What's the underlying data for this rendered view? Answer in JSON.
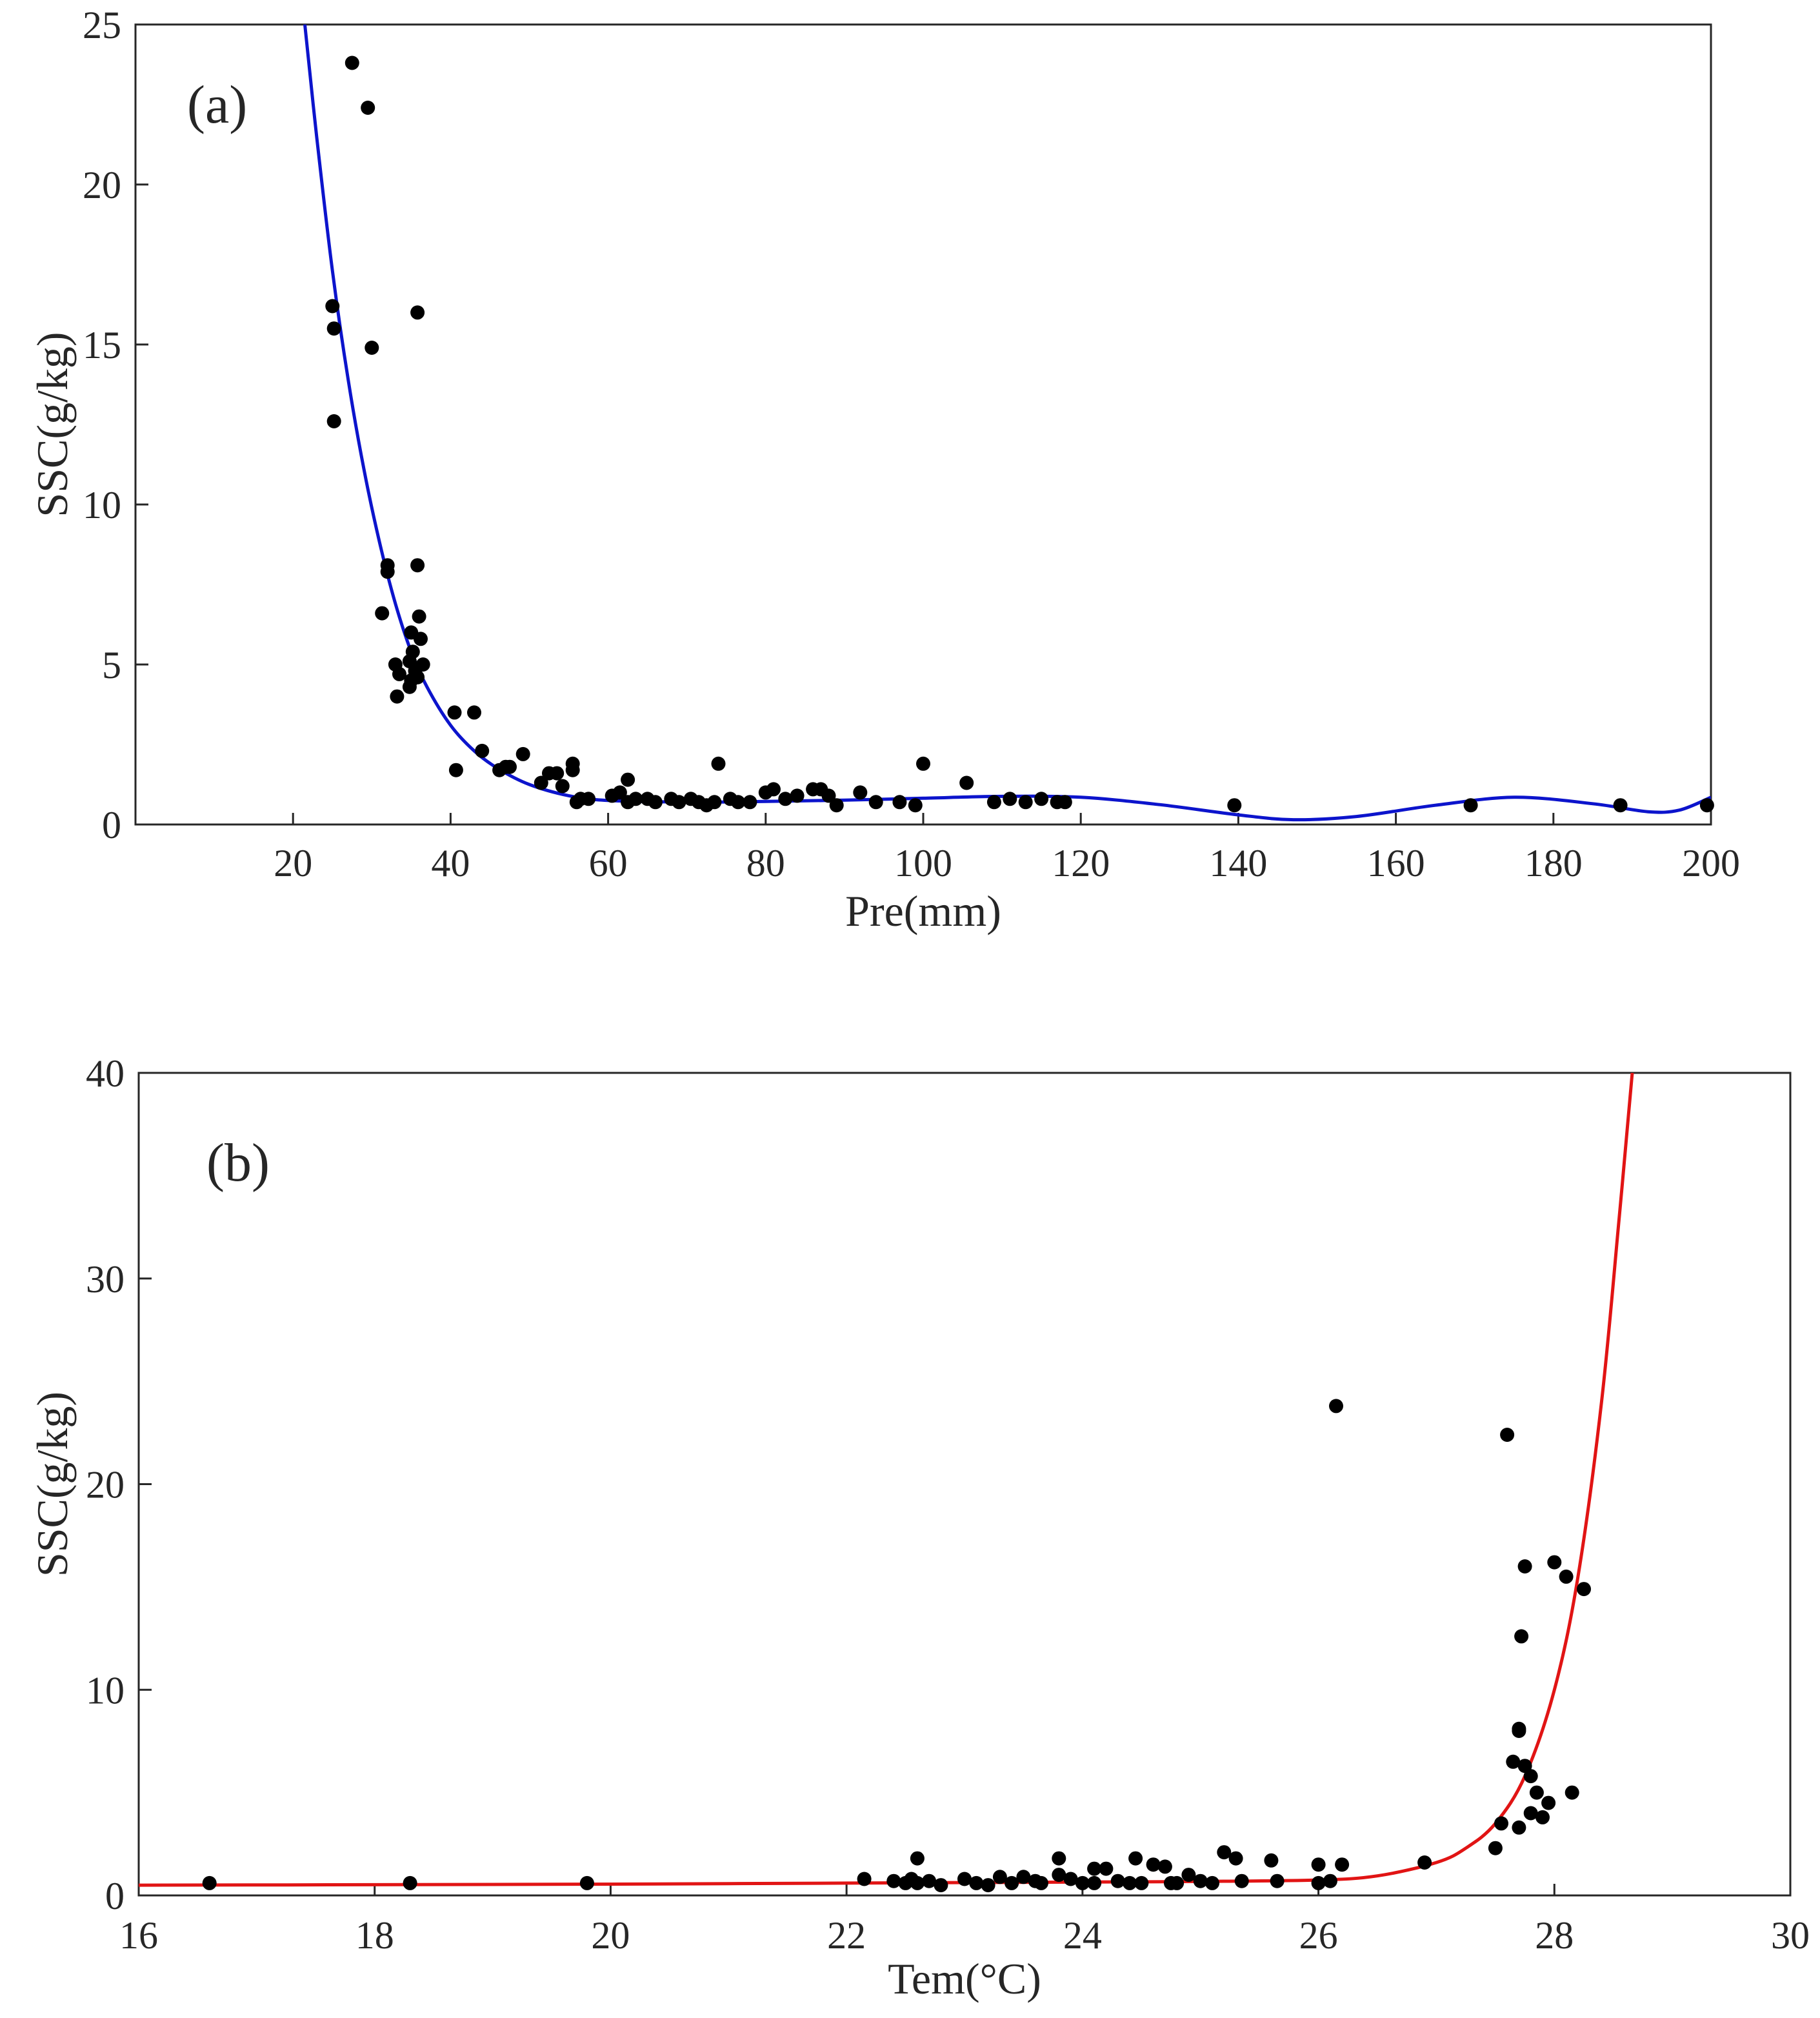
{
  "chart_data": [
    {
      "type": "scatter",
      "panel_label": "(a)",
      "xlabel": "Pre(mm)",
      "ylabel": "SSC(g/kg)",
      "xlim": [
        0,
        200
      ],
      "ylim": [
        0,
        25
      ],
      "xticks": [
        20,
        40,
        60,
        80,
        100,
        120,
        140,
        160,
        180,
        200
      ],
      "yticks": [
        0,
        5,
        10,
        15,
        20,
        25
      ],
      "fit_color": "#0c14cc",
      "fit_curve": {
        "x": [
          21.5,
          23,
          25,
          27,
          29,
          31,
          33,
          35,
          37,
          40,
          43,
          46,
          50,
          55,
          60,
          70,
          80,
          90,
          100,
          110,
          120,
          130,
          140,
          147,
          155,
          165,
          175,
          185,
          192,
          196,
          200
        ],
        "y": [
          25,
          21.5,
          17.3,
          13.9,
          11.1,
          8.8,
          6.9,
          5.4,
          4.3,
          3.1,
          2.3,
          1.75,
          1.25,
          0.9,
          0.75,
          0.7,
          0.72,
          0.76,
          0.82,
          0.88,
          0.85,
          0.62,
          0.3,
          0.15,
          0.25,
          0.6,
          0.85,
          0.65,
          0.4,
          0.45,
          0.85
        ]
      },
      "points": {
        "x": [
          27.5,
          29.5,
          25,
          25.2,
          35.8,
          30,
          25.2,
          32,
          32,
          35.8,
          31.3,
          36,
          35,
          36.2,
          35.2,
          33,
          34.8,
          36.5,
          33.5,
          35,
          33.2,
          34.8,
          35.5,
          35.8,
          40.5,
          43,
          44,
          40.7,
          46.2,
          47,
          49.2,
          47.5,
          52.5,
          53.5,
          54.2,
          55.5,
          56,
          51.5,
          55.5,
          56.5,
          57.5,
          60.5,
          61.5,
          62.5,
          63.5,
          62.5,
          65,
          66,
          68,
          69,
          70.5,
          71.5,
          72.5,
          73.5,
          74,
          75.5,
          76.5,
          78,
          80,
          81,
          82.5,
          84,
          86,
          87,
          88,
          89,
          92,
          94,
          97,
          99,
          100,
          105.5,
          109,
          111,
          113,
          115,
          117,
          118,
          139.5,
          169.5,
          188.5,
          199.5
        ],
        "y": [
          23.8,
          22.4,
          16.2,
          15.5,
          16,
          14.9,
          12.6,
          8.1,
          7.9,
          8.1,
          6.6,
          6.5,
          6,
          5.8,
          5.4,
          5,
          5.1,
          5,
          4.7,
          4.5,
          4,
          4.3,
          4.8,
          4.6,
          3.5,
          3.5,
          2.3,
          1.7,
          1.7,
          1.8,
          2.2,
          1.8,
          1.6,
          1.6,
          1.2,
          1.9,
          0.7,
          1.3,
          1.7,
          0.8,
          0.8,
          0.9,
          1.0,
          1.4,
          0.8,
          0.7,
          0.8,
          0.7,
          0.8,
          0.7,
          0.8,
          0.7,
          0.6,
          0.7,
          1.9,
          0.8,
          0.7,
          0.7,
          1.0,
          1.1,
          0.8,
          0.9,
          1.1,
          1.1,
          0.9,
          0.6,
          1.0,
          0.7,
          0.7,
          0.6,
          1.9,
          1.3,
          0.7,
          0.8,
          0.7,
          0.8,
          0.7,
          0.7,
          0.6,
          0.6,
          0.6,
          0.6
        ]
      }
    },
    {
      "type": "scatter",
      "panel_label": "(b)",
      "xlabel": "Tem(°C)",
      "ylabel": "SSC(g/kg)",
      "xlim": [
        16,
        30
      ],
      "ylim": [
        0,
        40
      ],
      "xticks": [
        16,
        18,
        20,
        22,
        24,
        26,
        28,
        30
      ],
      "yticks": [
        0,
        10,
        20,
        30,
        40
      ],
      "fit_color": "#e11414",
      "fit_curve": {
        "x": [
          16,
          18,
          20,
          22,
          24,
          25,
          26,
          26.5,
          27,
          27.25,
          27.5,
          27.75,
          28,
          28.2,
          28.4,
          28.55,
          28.66
        ],
        "y": [
          0.5,
          0.52,
          0.55,
          0.6,
          0.65,
          0.68,
          0.75,
          0.95,
          1.6,
          2.3,
          3.5,
          5.8,
          10.0,
          15.5,
          24.0,
          33.0,
          40.0
        ]
      },
      "points": {
        "x": [
          16.6,
          18.3,
          19.8,
          22.15,
          22.4,
          22.5,
          22.55,
          22.6,
          22.6,
          22.7,
          22.8,
          23.0,
          23.1,
          23.2,
          23.3,
          23.4,
          23.5,
          23.6,
          23.65,
          23.8,
          23.8,
          23.9,
          24.0,
          24.1,
          24.1,
          24.2,
          24.3,
          24.4,
          24.45,
          24.5,
          24.6,
          24.7,
          24.75,
          24.8,
          24.9,
          25.0,
          25.1,
          25.2,
          25.3,
          25.35,
          25.6,
          25.65,
          26.0,
          26.0,
          26.1,
          26.15,
          26.2,
          26.9,
          27.5,
          27.55,
          27.6,
          27.65,
          27.7,
          27.7,
          27.72,
          27.75,
          27.75,
          27.8,
          27.8,
          27.85,
          27.9,
          27.95,
          27.7,
          28.0,
          28.1,
          28.15,
          28.25
        ],
        "y": [
          0.6,
          0.6,
          0.6,
          0.8,
          0.7,
          0.6,
          0.8,
          1.8,
          0.6,
          0.7,
          0.5,
          0.8,
          0.6,
          0.5,
          0.9,
          0.6,
          0.9,
          0.7,
          0.6,
          1.8,
          1.0,
          0.8,
          0.6,
          1.3,
          0.6,
          1.3,
          0.7,
          0.6,
          1.8,
          0.6,
          1.5,
          1.4,
          0.6,
          0.6,
          1.0,
          0.7,
          0.6,
          2.1,
          1.8,
          0.7,
          1.7,
          0.7,
          1.5,
          0.6,
          0.7,
          23.8,
          1.5,
          1.6,
          2.3,
          3.5,
          22.4,
          6.5,
          8.0,
          3.3,
          12.6,
          16.0,
          6.3,
          5.8,
          4.0,
          5.0,
          3.8,
          4.5,
          8.1,
          16.2,
          15.5,
          5.0,
          14.9
        ]
      }
    }
  ]
}
